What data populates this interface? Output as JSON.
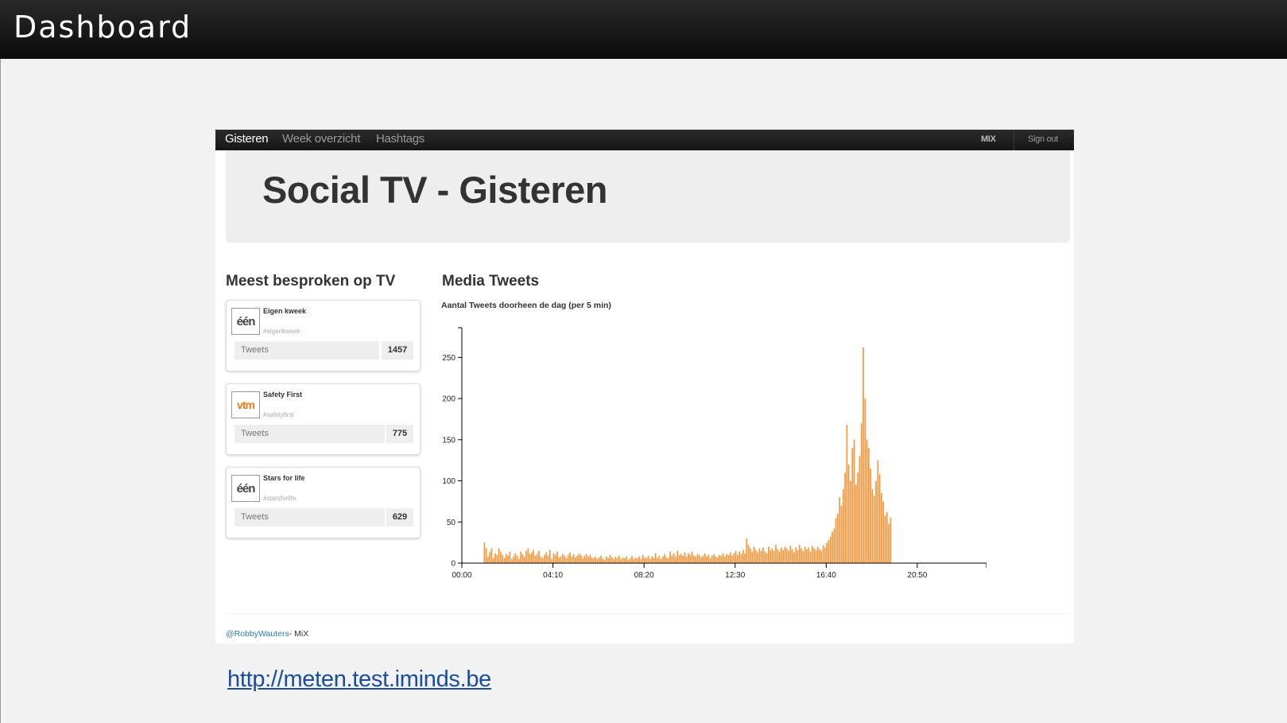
{
  "slide": {
    "title": "Dashboard",
    "link": "http://meten.test.iminds.be"
  },
  "navbar": {
    "items": [
      {
        "label": "Gisteren",
        "active": true
      },
      {
        "label": "Week overzicht",
        "active": false
      },
      {
        "label": "Hashtags",
        "active": false
      }
    ],
    "brand": "MIX",
    "signout": "Sign out"
  },
  "hero": {
    "title": "Social TV - Gisteren"
  },
  "left_panel": {
    "title": "Meest besproken op TV",
    "cards": [
      {
        "logo": "één",
        "logo_icon": "een-logo-icon",
        "name": "Eigen kweek",
        "hashtag": "#eigenkweek",
        "stat_label": "Tweets",
        "count": "1457"
      },
      {
        "logo": "vtm",
        "logo_icon": "vtm-logo-icon",
        "name": "Safety First",
        "hashtag": "#safetyfirst",
        "stat_label": "Tweets",
        "count": "775"
      },
      {
        "logo": "één",
        "logo_icon": "een-logo-icon",
        "name": "Stars for life",
        "hashtag": "#starsforlife",
        "stat_label": "Tweets",
        "count": "629"
      }
    ]
  },
  "right_panel": {
    "title": "Media Tweets",
    "subtitle": "Aantal Tweets doorheen de dag (per 5 min)"
  },
  "chart_data": {
    "type": "bar",
    "title": "Aantal Tweets doorheen de dag (per 5 min)",
    "color": "#f7953a",
    "bin_minutes": 5,
    "x_ticks": [
      "00:00",
      "04:10",
      "08:20",
      "12:30",
      "16:40",
      "20:50"
    ],
    "y_ticks": [
      0,
      50,
      100,
      150,
      200,
      250
    ],
    "ylim": [
      0,
      290
    ],
    "x_range_minutes": [
      0,
      1440
    ],
    "start_minute": 60,
    "values": [
      25,
      18,
      8,
      14,
      18,
      6,
      12,
      10,
      18,
      14,
      10,
      6,
      11,
      9,
      14,
      5,
      8,
      12,
      9,
      5,
      14,
      11,
      8,
      15,
      18,
      11,
      13,
      16,
      9,
      11,
      15,
      8,
      6,
      10,
      13,
      9,
      16,
      5,
      12,
      10,
      14,
      7,
      8,
      11,
      9,
      6,
      10,
      13,
      8,
      11,
      7,
      9,
      12,
      10,
      6,
      9,
      11,
      8,
      10,
      7,
      6,
      8,
      5,
      7,
      9,
      6,
      4,
      8,
      6,
      10,
      7,
      5,
      8,
      6,
      9,
      5,
      7,
      6,
      8,
      4,
      6,
      9,
      5,
      7,
      6,
      8,
      5,
      10,
      7,
      6,
      9,
      5,
      8,
      7,
      12,
      6,
      9,
      5,
      8,
      11,
      7,
      6,
      14,
      9,
      12,
      8,
      15,
      10,
      11,
      9,
      13,
      8,
      12,
      10,
      14,
      9,
      8,
      11,
      10,
      7,
      9,
      12,
      8,
      10,
      6,
      9,
      11,
      8,
      7,
      10,
      9,
      12,
      8,
      11,
      10,
      13,
      9,
      12,
      15,
      10,
      14,
      11,
      16,
      12,
      30,
      22,
      18,
      14,
      20,
      16,
      13,
      18,
      15,
      19,
      14,
      12,
      20,
      16,
      18,
      15,
      22,
      17,
      14,
      19,
      16,
      20,
      18,
      15,
      21,
      17,
      13,
      19,
      16,
      22,
      18,
      15,
      20,
      17,
      19,
      14,
      21,
      18,
      16,
      20,
      17,
      15,
      22,
      19,
      25,
      28,
      32,
      38,
      42,
      55,
      60,
      80,
      70,
      90,
      110,
      168,
      120,
      100,
      140,
      150,
      95,
      110,
      130,
      170,
      262,
      200,
      150,
      140,
      115,
      90,
      82,
      100,
      125,
      108,
      85,
      75,
      58,
      62,
      48,
      55
    ],
    "values_note": ""
  }
}
